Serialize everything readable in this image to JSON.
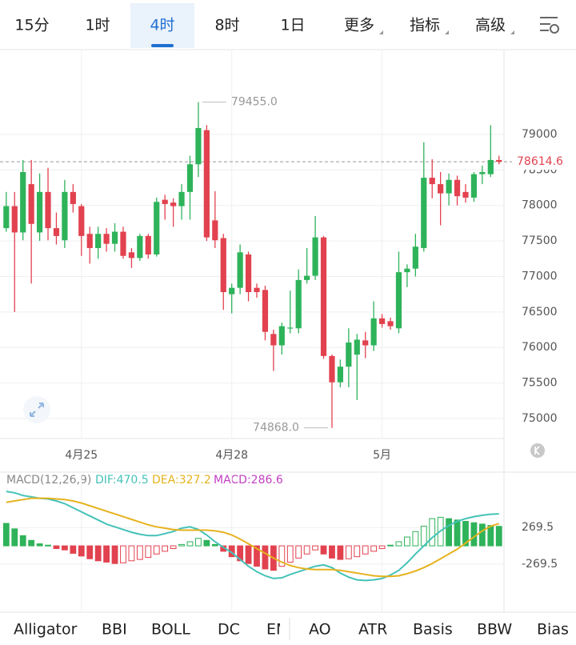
{
  "tabs": [
    "15分",
    "1时",
    "4时",
    "8时",
    "1日",
    "更多",
    "指标",
    "高级"
  ],
  "active_tab": 2,
  "indicators": [
    "Alligator",
    "BBI",
    "BOLL",
    "DC",
    "EMA",
    "AO",
    "ATR",
    "Basis",
    "BBW",
    "Bias"
  ],
  "chart_data": [
    {
      "type": "candlestick",
      "up_color": "#2eb35a",
      "down_color": "#e2424f",
      "xlim": [
        -0.75,
        59.6
      ],
      "xticks": [
        {
          "value": 9,
          "label": "4月25"
        },
        {
          "value": 27,
          "label": "4月28"
        },
        {
          "value": 45,
          "label": "5月"
        }
      ],
      "ylim": [
        74718,
        80194
      ],
      "yticks": [
        75000,
        75500,
        76000,
        76500,
        77000,
        77500,
        78000,
        78500,
        79000
      ],
      "grid": true,
      "last_price": 78614.6,
      "annotations": [
        {
          "index": 23,
          "value": 79455,
          "label": "79455.0"
        },
        {
          "index": 39,
          "value": 74868,
          "label": "74868.0"
        }
      ],
      "open": [
        77680,
        77990,
        77620,
        78300,
        77620,
        78190,
        77680,
        77510,
        78190,
        77990,
        77600,
        77400,
        77600,
        77460,
        77630,
        77340,
        77260,
        77570,
        77310,
        78080,
        78040,
        77990,
        78190,
        78580,
        79060,
        77790,
        77540,
        76750,
        76840,
        77310,
        76840,
        76810,
        76190,
        76030,
        76270,
        76270,
        76950,
        77010,
        77550,
        75880,
        75510,
        75730,
        75900,
        76100,
        76030,
        76410,
        76370,
        76270,
        77060,
        77110,
        77400,
        78390,
        78300,
        78170,
        78360,
        78190,
        78110,
        78440,
        78440,
        78640
      ],
      "high": [
        78190,
        78190,
        78640,
        78640,
        78450,
        78530,
        77900,
        78360,
        78300,
        78020,
        77700,
        77700,
        77680,
        77750,
        77700,
        77400,
        77600,
        77600,
        78110,
        78150,
        78100,
        78300,
        78700,
        79455,
        79130,
        78200,
        77600,
        76900,
        77450,
        77350,
        76900,
        76870,
        76250,
        76350,
        76800,
        77100,
        77400,
        77850,
        77570,
        75900,
        75830,
        76270,
        76190,
        76220,
        76650,
        76470,
        76420,
        77350,
        77170,
        77600,
        78890,
        78650,
        78470,
        78450,
        78420,
        78300,
        78470,
        78560,
        79130,
        78700
      ],
      "low": [
        77630,
        76500,
        77510,
        76900,
        77500,
        77510,
        77450,
        77400,
        77900,
        77290,
        77180,
        77250,
        77350,
        77350,
        77250,
        77120,
        77220,
        77250,
        77280,
        77800,
        77700,
        77800,
        77800,
        78400,
        77500,
        77400,
        76530,
        76480,
        76750,
        76650,
        76700,
        76100,
        75670,
        75900,
        76200,
        76200,
        76900,
        76950,
        75840,
        74868,
        75440,
        75440,
        75260,
        75850,
        75950,
        76280,
        76250,
        76200,
        76850,
        77000,
        77350,
        78100,
        77720,
        78000,
        78000,
        78040,
        78050,
        78300,
        78400,
        78580
      ],
      "close": [
        77990,
        77620,
        78470,
        77740,
        78190,
        77680,
        77570,
        78190,
        78020,
        77570,
        77400,
        77600,
        77460,
        77630,
        77290,
        77260,
        77570,
        77310,
        78050,
        78020,
        77990,
        78190,
        78580,
        79090,
        77550,
        77510,
        76780,
        76840,
        77340,
        76780,
        76780,
        76220,
        76030,
        76300,
        76280,
        76950,
        77010,
        77550,
        75880,
        75510,
        75730,
        76070,
        76110,
        76030,
        76410,
        76330,
        76300,
        77060,
        77110,
        77420,
        78390,
        78300,
        78170,
        78360,
        78130,
        78110,
        78440,
        78470,
        78640,
        78614.6
      ]
    },
    {
      "type": "macd",
      "title": "MACD(12,26,9)",
      "xlim": [
        -0.75,
        59.6
      ],
      "ylim": [
        -976,
        1084
      ],
      "yticks": [
        269.5,
        -269.5
      ],
      "histogram": {
        "label": "MACD:286.6",
        "up_color": "#2eb35a",
        "down_color": "#e2424f",
        "values": [
          330,
          250,
          150,
          80,
          30,
          10,
          -40,
          -60,
          -110,
          -150,
          -190,
          -220,
          -240,
          -260,
          -250,
          -220,
          -200,
          -170,
          -120,
          -80,
          -40,
          20,
          60,
          110,
          80,
          20,
          -80,
          -160,
          -220,
          -260,
          -300,
          -340,
          -360,
          -300,
          -240,
          -180,
          -120,
          -60,
          -120,
          -180,
          -200,
          -190,
          -160,
          -120,
          -80,
          -40,
          10,
          60,
          130,
          210,
          290,
          400,
          420,
          400,
          380,
          360,
          340,
          320,
          300,
          286.6
        ]
      },
      "series": [
        {
          "name": "DIF",
          "label": "DIF:470.5",
          "color": "#45c2b8",
          "values": [
            800,
            780,
            740,
            720,
            700,
            690,
            660,
            620,
            560,
            500,
            440,
            380,
            320,
            280,
            240,
            200,
            170,
            150,
            150,
            180,
            210,
            260,
            280,
            240,
            160,
            60,
            -20,
            -100,
            -200,
            -300,
            -380,
            -440,
            -480,
            -470,
            -420,
            -380,
            -340,
            -300,
            -280,
            -320,
            -400,
            -460,
            -500,
            -510,
            -500,
            -480,
            -430,
            -360,
            -250,
            -120,
            0,
            120,
            220,
            300,
            360,
            400,
            430,
            450,
            465,
            470.5
          ]
        },
        {
          "name": "DEA",
          "label": "DEA:327.2",
          "color": "#e6b21e",
          "values": [
            640,
            660,
            680,
            700,
            700,
            700,
            690,
            680,
            660,
            630,
            590,
            550,
            510,
            470,
            430,
            390,
            350,
            310,
            280,
            260,
            240,
            230,
            230,
            230,
            230,
            220,
            200,
            160,
            100,
            30,
            -40,
            -110,
            -180,
            -240,
            -290,
            -320,
            -340,
            -350,
            -350,
            -350,
            -360,
            -380,
            -400,
            -420,
            -440,
            -450,
            -450,
            -440,
            -410,
            -370,
            -320,
            -260,
            -190,
            -120,
            -50,
            40,
            130,
            220,
            290,
            327.2
          ]
        }
      ]
    }
  ]
}
